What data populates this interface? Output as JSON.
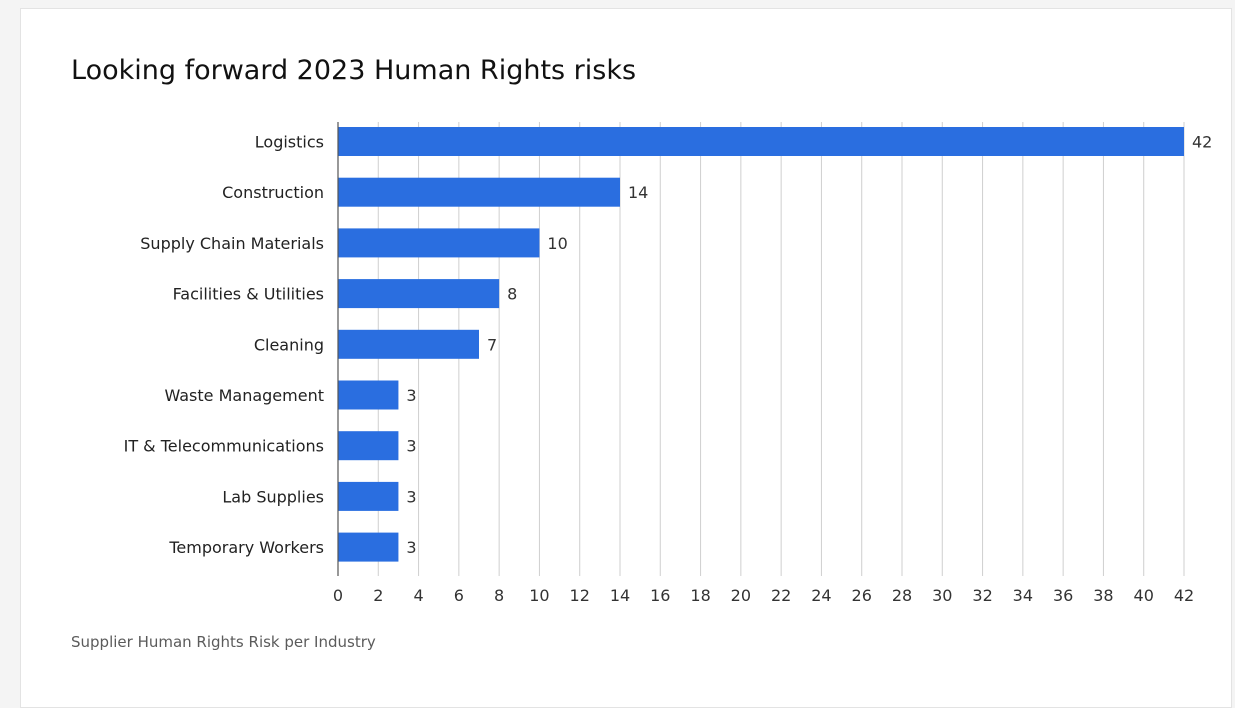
{
  "chart_data": {
    "type": "bar",
    "orientation": "horizontal",
    "title": "Looking forward 2023 Human Rights risks",
    "caption": "Supplier Human Rights Risk per Industry",
    "categories": [
      "Logistics",
      "Construction",
      "Supply Chain Materials",
      "Facilities & Utilities",
      "Cleaning",
      "Waste Management",
      "IT & Telecommunications",
      "Lab Supplies",
      "Temporary Workers"
    ],
    "values": [
      42,
      14,
      10,
      8,
      7,
      3,
      3,
      3,
      3
    ],
    "xlim": [
      0,
      42
    ],
    "x_ticks": [
      0,
      2,
      4,
      6,
      8,
      10,
      12,
      14,
      16,
      18,
      20,
      22,
      24,
      26,
      28,
      30,
      32,
      34,
      36,
      38,
      40,
      42
    ],
    "xlabel": "",
    "ylabel": "",
    "grid": "vertical",
    "data_labels": true,
    "legend": "none",
    "bar_color": "#2a6ee0",
    "grid_color": "#cfcfcf"
  }
}
